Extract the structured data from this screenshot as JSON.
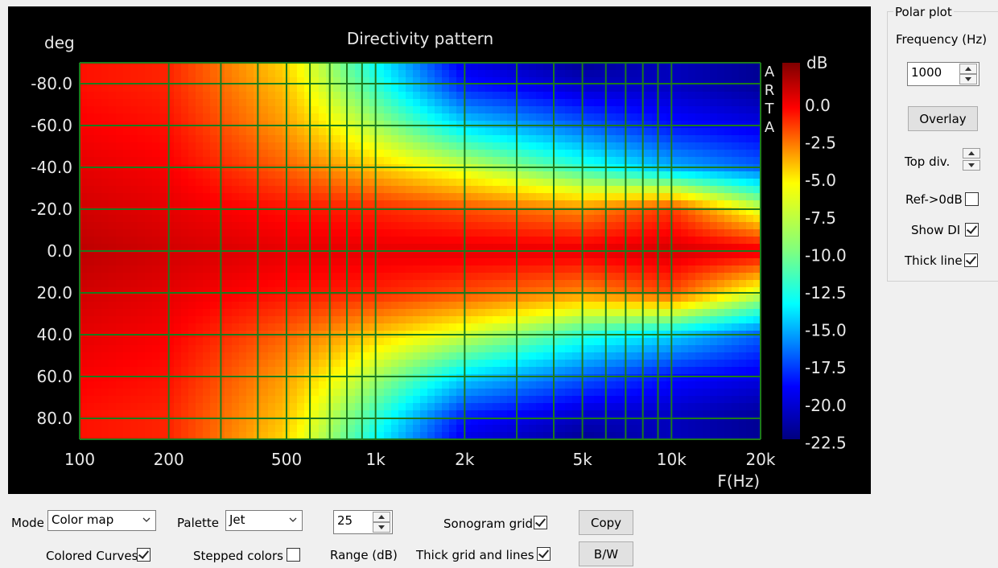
{
  "chart": {
    "title": "Directivity pattern",
    "y_unit": "deg",
    "x_unit": "F(Hz)",
    "colorbar_unit": "dB",
    "brand_letters": [
      "A",
      "R",
      "T",
      "A"
    ],
    "y_ticks": [
      "-80.0",
      "-60.0",
      "-40.0",
      "-20.0",
      "0.0",
      "20.0",
      "40.0",
      "60.0",
      "80.0"
    ],
    "x_ticks": [
      "100",
      "200",
      "500",
      "1k",
      "2k",
      "5k",
      "10k",
      "20k"
    ],
    "colorbar_ticks": [
      "0.0",
      "-2.5",
      "-5.0",
      "-7.5",
      "-10.0",
      "-12.5",
      "-15.0",
      "-17.5",
      "-20.0",
      "-22.5"
    ],
    "grid_color": "#1d7a1d"
  },
  "chart_data": {
    "type": "heatmap",
    "title": "Directivity pattern",
    "xlabel": "F(Hz)",
    "ylabel": "deg",
    "x_scale": "log",
    "xlim": [
      100,
      20000
    ],
    "ylim": [
      -90,
      90
    ],
    "colorbar": {
      "label": "dB",
      "range": [
        -22.5,
        2.5
      ],
      "palette": "Jet"
    },
    "frequencies_hz": [
      100,
      200,
      500,
      1000,
      2000,
      5000,
      10000,
      20000
    ],
    "angles_deg": [
      -90,
      -80,
      -60,
      -40,
      -20,
      0,
      20,
      40,
      60,
      80,
      90
    ],
    "levels_db": [
      [
        -1.0,
        -1.5,
        -6.0,
        -13.0,
        -20.0,
        -22.0,
        -21.0,
        -22.0
      ],
      [
        -1.0,
        -1.5,
        -5.5,
        -12.0,
        -19.0,
        -21.0,
        -21.0,
        -22.0
      ],
      [
        -0.5,
        -1.0,
        -4.5,
        -9.0,
        -14.0,
        -17.0,
        -19.0,
        -20.0
      ],
      [
        0.0,
        -0.5,
        -3.0,
        -5.5,
        -8.0,
        -12.0,
        -15.0,
        -17.0
      ],
      [
        0.5,
        0.0,
        -1.0,
        -1.5,
        -2.5,
        -4.0,
        -2.0,
        -8.0
      ],
      [
        1.0,
        0.5,
        0.0,
        0.0,
        0.0,
        0.0,
        0.5,
        0.0
      ],
      [
        0.5,
        0.0,
        -1.0,
        -1.5,
        -2.5,
        -4.0,
        -2.5,
        -8.0
      ],
      [
        0.0,
        -0.5,
        -3.0,
        -5.5,
        -8.0,
        -12.0,
        -14.0,
        -17.0
      ],
      [
        -0.5,
        -1.0,
        -4.5,
        -9.0,
        -14.0,
        -17.0,
        -19.0,
        -20.0
      ],
      [
        -1.0,
        -1.5,
        -5.5,
        -12.0,
        -19.0,
        -21.0,
        -21.0,
        -22.0
      ],
      [
        -1.0,
        -1.5,
        -6.0,
        -13.0,
        -20.0,
        -22.0,
        -21.0,
        -22.0
      ]
    ]
  },
  "polar": {
    "group_label": "Polar plot",
    "frequency_label": "Frequency (Hz)",
    "frequency_value": "1000",
    "overlay_label": "Overlay",
    "top_div_label": "Top div.",
    "ref_label": "Ref->0dB",
    "ref_checked": false,
    "show_di_label": "Show DI",
    "show_di_checked": true,
    "thick_line_label": "Thick line",
    "thick_line_checked": true
  },
  "bottom": {
    "mode_label": "Mode",
    "mode_value": "Color map",
    "palette_label": "Palette",
    "palette_value": "Jet",
    "range_value": "25",
    "range_label": "Range (dB)",
    "colored_curves_label": "Colored Curves",
    "colored_curves_checked": true,
    "stepped_colors_label": "Stepped colors",
    "stepped_colors_checked": false,
    "sonogram_grid_label": "Sonogram grid",
    "sonogram_grid_checked": true,
    "thick_grid_label": "Thick grid and  lines",
    "thick_grid_checked": true,
    "copy_label": "Copy",
    "bw_label": "B/W"
  }
}
